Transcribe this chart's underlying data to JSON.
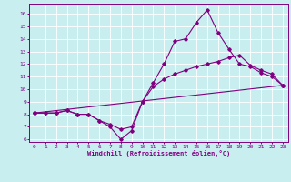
{
  "bg_color": "#c8eef0",
  "line_color": "#800080",
  "grid_color": "#ffffff",
  "xlim": [
    -0.5,
    23.5
  ],
  "ylim": [
    5.8,
    16.8
  ],
  "yticks": [
    6,
    7,
    8,
    9,
    10,
    11,
    12,
    13,
    14,
    15,
    16
  ],
  "xticks": [
    0,
    1,
    2,
    3,
    4,
    5,
    6,
    7,
    8,
    9,
    10,
    11,
    12,
    13,
    14,
    15,
    16,
    17,
    18,
    19,
    20,
    21,
    22,
    23
  ],
  "xlabel": "Windchill (Refroidissement éolien,°C)",
  "line1_x": [
    0,
    1,
    2,
    3,
    4,
    5,
    6,
    7,
    8,
    9,
    10,
    11,
    12,
    13,
    14,
    15,
    16,
    17,
    18,
    19,
    20,
    21,
    22,
    23
  ],
  "line1_y": [
    8.1,
    8.1,
    8.1,
    8.3,
    8.0,
    8.0,
    7.5,
    7.0,
    6.0,
    6.7,
    9.0,
    10.5,
    12.0,
    13.8,
    14.0,
    15.3,
    16.3,
    14.5,
    13.2,
    12.0,
    11.8,
    11.3,
    11.0,
    10.3
  ],
  "line2_x": [
    0,
    1,
    2,
    3,
    4,
    5,
    6,
    7,
    8,
    9,
    10,
    11,
    12,
    13,
    14,
    15,
    16,
    17,
    18,
    19,
    20,
    21,
    22,
    23
  ],
  "line2_y": [
    8.1,
    8.1,
    8.1,
    8.3,
    8.0,
    8.0,
    7.5,
    7.2,
    6.8,
    7.0,
    9.0,
    10.2,
    10.8,
    11.2,
    11.5,
    11.8,
    12.0,
    12.2,
    12.5,
    12.7,
    11.9,
    11.5,
    11.2,
    10.3
  ],
  "line3_x": [
    0,
    23
  ],
  "line3_y": [
    8.1,
    10.3
  ]
}
